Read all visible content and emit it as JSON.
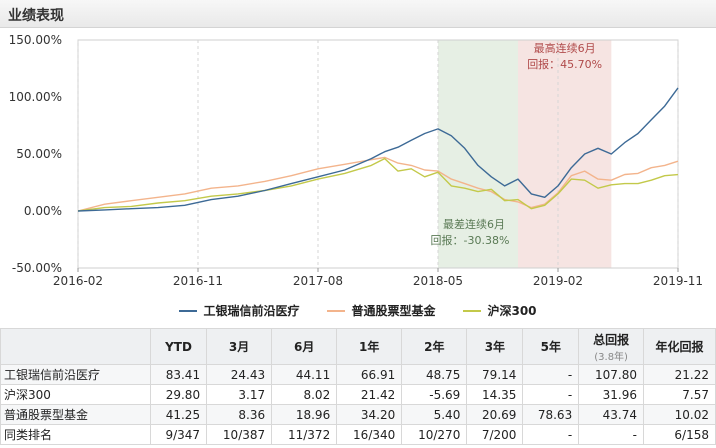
{
  "header": {
    "title": "业绩表现"
  },
  "chart_data": {
    "type": "line",
    "x_ticks": [
      "2016-02",
      "2016-11",
      "2017-08",
      "2018-05",
      "2019-02",
      "2019-11"
    ],
    "y_ticks": [
      "-50.00%",
      "0.00%",
      "50.00%",
      "100.00%",
      "150.00%"
    ],
    "ylim": [
      -50,
      150
    ],
    "xlim": [
      "2016-02",
      "2019-11"
    ],
    "series": [
      {
        "name": "工银瑞信前沿医疗",
        "color": "#3d6a96",
        "points": [
          [
            "2016-02",
            0
          ],
          [
            "2016-04",
            1
          ],
          [
            "2016-06",
            2
          ],
          [
            "2016-08",
            3
          ],
          [
            "2016-10",
            5
          ],
          [
            "2016-12",
            10
          ],
          [
            "2017-02",
            13
          ],
          [
            "2017-04",
            18
          ],
          [
            "2017-06",
            24
          ],
          [
            "2017-08",
            30
          ],
          [
            "2017-10",
            36
          ],
          [
            "2017-12",
            46
          ],
          [
            "2018-01",
            52
          ],
          [
            "2018-02",
            56
          ],
          [
            "2018-03",
            62
          ],
          [
            "2018-04",
            68
          ],
          [
            "2018-05",
            72
          ],
          [
            "2018-06",
            66
          ],
          [
            "2018-07",
            55
          ],
          [
            "2018-08",
            40
          ],
          [
            "2018-09",
            30
          ],
          [
            "2018-10",
            22
          ],
          [
            "2018-11",
            28
          ],
          [
            "2018-12",
            15
          ],
          [
            "2019-01",
            12
          ],
          [
            "2019-02",
            22
          ],
          [
            "2019-03",
            38
          ],
          [
            "2019-04",
            50
          ],
          [
            "2019-05",
            55
          ],
          [
            "2019-06",
            50
          ],
          [
            "2019-07",
            60
          ],
          [
            "2019-08",
            68
          ],
          [
            "2019-09",
            80
          ],
          [
            "2019-10",
            92
          ],
          [
            "2019-11",
            108
          ]
        ]
      },
      {
        "name": "普通股票型基金",
        "color": "#f3b48c",
        "points": [
          [
            "2016-02",
            0
          ],
          [
            "2016-04",
            6
          ],
          [
            "2016-06",
            9
          ],
          [
            "2016-08",
            12
          ],
          [
            "2016-10",
            15
          ],
          [
            "2016-12",
            20
          ],
          [
            "2017-02",
            22
          ],
          [
            "2017-04",
            26
          ],
          [
            "2017-06",
            31
          ],
          [
            "2017-08",
            37
          ],
          [
            "2017-10",
            41
          ],
          [
            "2017-12",
            45
          ],
          [
            "2018-01",
            47
          ],
          [
            "2018-02",
            42
          ],
          [
            "2018-03",
            40
          ],
          [
            "2018-04",
            36
          ],
          [
            "2018-05",
            35
          ],
          [
            "2018-06",
            28
          ],
          [
            "2018-07",
            24
          ],
          [
            "2018-08",
            20
          ],
          [
            "2018-09",
            17
          ],
          [
            "2018-10",
            10
          ],
          [
            "2018-11",
            8
          ],
          [
            "2018-12",
            3
          ],
          [
            "2019-01",
            6
          ],
          [
            "2019-02",
            16
          ],
          [
            "2019-03",
            31
          ],
          [
            "2019-04",
            35
          ],
          [
            "2019-05",
            28
          ],
          [
            "2019-06",
            27
          ],
          [
            "2019-07",
            32
          ],
          [
            "2019-08",
            33
          ],
          [
            "2019-09",
            38
          ],
          [
            "2019-10",
            40
          ],
          [
            "2019-11",
            43.7
          ]
        ]
      },
      {
        "name": "沪深300",
        "color": "#c3c94a",
        "points": [
          [
            "2016-02",
            0
          ],
          [
            "2016-04",
            3
          ],
          [
            "2016-06",
            4
          ],
          [
            "2016-08",
            7
          ],
          [
            "2016-10",
            9
          ],
          [
            "2016-12",
            13
          ],
          [
            "2017-02",
            15
          ],
          [
            "2017-04",
            18
          ],
          [
            "2017-06",
            22
          ],
          [
            "2017-08",
            28
          ],
          [
            "2017-10",
            33
          ],
          [
            "2017-12",
            40
          ],
          [
            "2018-01",
            46
          ],
          [
            "2018-02",
            35
          ],
          [
            "2018-03",
            37
          ],
          [
            "2018-04",
            30
          ],
          [
            "2018-05",
            34
          ],
          [
            "2018-06",
            22
          ],
          [
            "2018-07",
            20
          ],
          [
            "2018-08",
            17
          ],
          [
            "2018-09",
            19
          ],
          [
            "2018-10",
            9
          ],
          [
            "2018-11",
            10
          ],
          [
            "2018-12",
            2
          ],
          [
            "2019-01",
            5
          ],
          [
            "2019-02",
            15
          ],
          [
            "2019-03",
            28
          ],
          [
            "2019-04",
            27
          ],
          [
            "2019-05",
            20
          ],
          [
            "2019-06",
            23
          ],
          [
            "2019-07",
            24
          ],
          [
            "2019-08",
            24
          ],
          [
            "2019-09",
            27
          ],
          [
            "2019-10",
            31
          ],
          [
            "2019-11",
            31.9
          ]
        ]
      }
    ],
    "highlights": [
      {
        "label_title": "最差连续6月",
        "label_value": "回报：-30.38%",
        "from": "2018-05",
        "to": "2018-11",
        "color": "#e6efe4",
        "text_color": "#5a7a55"
      },
      {
        "label_title": "最高连续6月",
        "label_value": "回报：45.70%",
        "from": "2018-11",
        "to": "2019-06",
        "color": "#f6e4e2",
        "text_color": "#b04a4a"
      }
    ],
    "legend_position": "bottom",
    "grid": "vertical-dashed"
  },
  "legend": [
    {
      "name": "工银瑞信前沿医疗",
      "color": "#3d6a96"
    },
    {
      "name": "普通股票型基金",
      "color": "#f3b48c"
    },
    {
      "name": "沪深300",
      "color": "#c3c94a"
    }
  ],
  "table": {
    "headers": [
      "",
      "YTD",
      "3月",
      "6月",
      "1年",
      "2年",
      "3年",
      "5年",
      "总回报",
      "年化回报"
    ],
    "total_sub": "(3.8年)",
    "rows": [
      [
        "工银瑞信前沿医疗",
        "83.41",
        "24.43",
        "44.11",
        "66.91",
        "48.75",
        "79.14",
        "-",
        "107.80",
        "21.22"
      ],
      [
        "沪深300",
        "29.80",
        "3.17",
        "8.02",
        "21.42",
        "-5.69",
        "14.35",
        "-",
        "31.96",
        "7.57"
      ],
      [
        "普通股票型基金",
        "41.25",
        "8.36",
        "18.96",
        "34.20",
        "5.40",
        "20.69",
        "78.63",
        "43.74",
        "10.02"
      ],
      [
        "同类排名",
        "9/347",
        "10/387",
        "11/372",
        "16/340",
        "10/270",
        "7/200",
        "-",
        "-",
        "6/158"
      ]
    ]
  }
}
